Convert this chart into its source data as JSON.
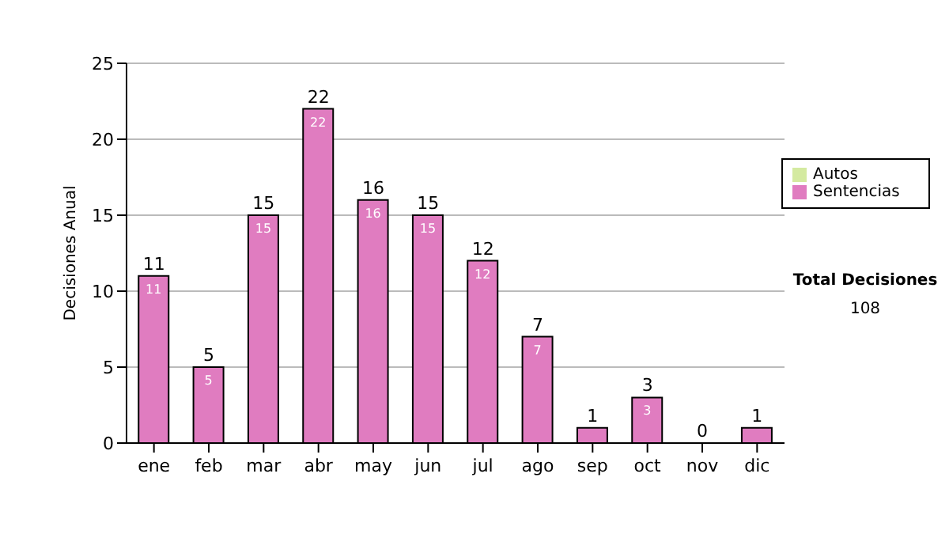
{
  "chart_data": {
    "type": "bar",
    "ylabel": "Decisiones Anual",
    "categories": [
      "ene",
      "feb",
      "mar",
      "abr",
      "may",
      "jun",
      "jul",
      "ago",
      "sep",
      "oct",
      "nov",
      "dic"
    ],
    "series": [
      {
        "name": "Sentencias",
        "color": "#e07cc0",
        "values": [
          11,
          5,
          15,
          22,
          16,
          15,
          12,
          7,
          1,
          3,
          0,
          1
        ],
        "value_labels": [
          "11",
          "5",
          "15",
          "22",
          "16",
          "15",
          "12",
          "7",
          null,
          "3",
          null,
          null
        ]
      },
      {
        "name": "Autos",
        "color": "#d4eaa0",
        "values": [
          null,
          null,
          null,
          null,
          null,
          null,
          null,
          null,
          null,
          null,
          null,
          null
        ]
      }
    ],
    "stacked": true,
    "totals": [
      "11",
      "5",
      "15",
      "22",
      "16",
      "15",
      "12",
      "7",
      "1",
      "3",
      "0",
      "1"
    ],
    "ylim": [
      0,
      25
    ],
    "yticks": [
      0,
      5,
      10,
      15,
      20,
      25
    ],
    "grid": "y",
    "legend": "right",
    "annotations": [
      "Total Decisiones",
      "108"
    ]
  }
}
